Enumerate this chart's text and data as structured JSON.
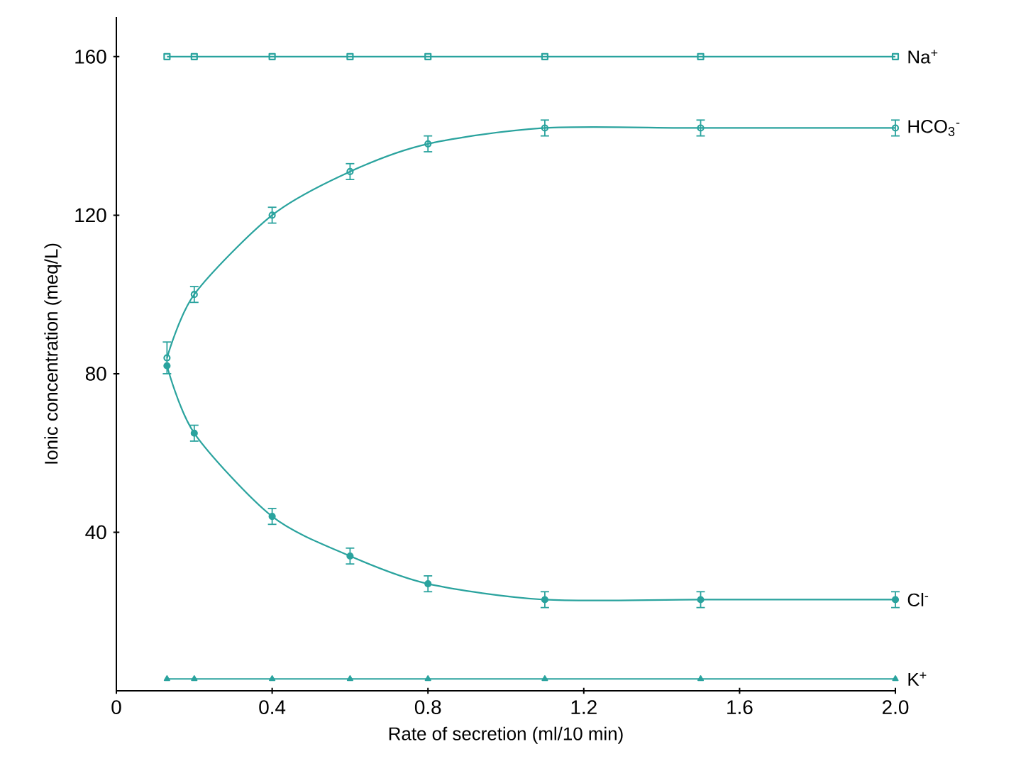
{
  "chart_data": {
    "type": "line",
    "xlabel": "Rate of secretion (ml/10 min)",
    "ylabel": "Ionic concentration (meq/L)",
    "x": [
      0.13,
      0.2,
      0.4,
      0.6,
      0.8,
      1.1,
      1.5,
      2.0
    ],
    "series": [
      {
        "name": "Na$^{+}$",
        "color": "#2aa39e",
        "marker": "square",
        "values": [
          160,
          160,
          160,
          160,
          160,
          160,
          160,
          160
        ]
      },
      {
        "name": "HCO$_{3}$$^{-}$",
        "color": "#2aa39e",
        "marker": "circle",
        "values": [
          84,
          100,
          120,
          131,
          138,
          142,
          142,
          142
        ],
        "errors": [
          4,
          2,
          2,
          2,
          2,
          2,
          2,
          2
        ]
      },
      {
        "name": "Cl$^{-}$",
        "color": "#2aa39e",
        "marker": "circle",
        "values": [
          82,
          65,
          44,
          34,
          27,
          23,
          23,
          23
        ],
        "errors": [
          null,
          2,
          2,
          2,
          2,
          2,
          2,
          2
        ]
      },
      {
        "name": "K$^{+}$",
        "color": "#2aa39e",
        "marker": "triangle",
        "values": [
          3,
          3,
          3,
          3,
          3,
          3,
          3,
          3
        ]
      }
    ],
    "xlim": [
      0,
      2.0
    ],
    "ylim": [
      0,
      170
    ],
    "xticks": [
      0,
      0.4,
      0.8,
      1.2,
      1.6,
      {
        "value": 2.0,
        "label": "2.0"
      }
    ],
    "yticks": [
      40,
      80,
      120,
      160
    ],
    "grid": false
  }
}
